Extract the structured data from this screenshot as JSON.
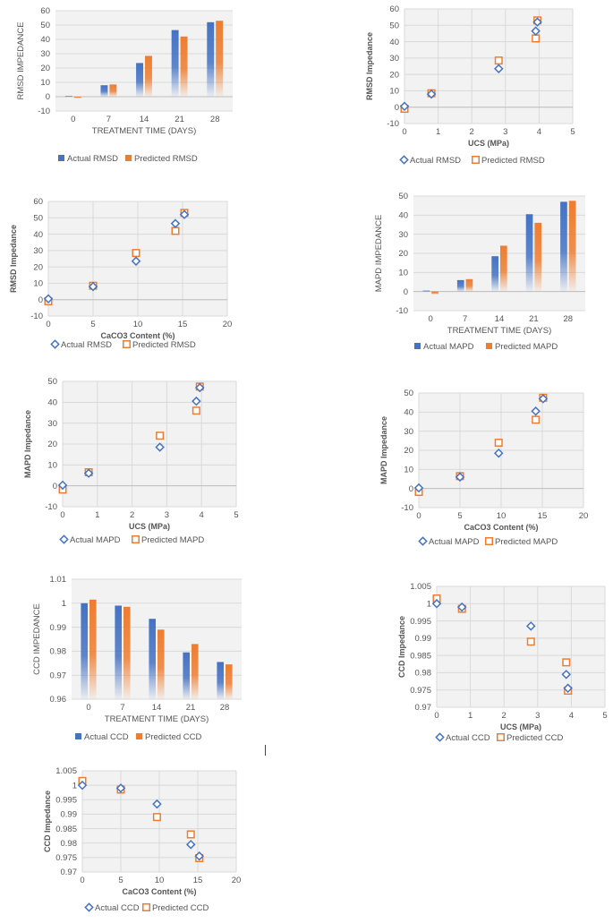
{
  "colors": {
    "actual": "#4472C4",
    "predicted": "#ED7D31",
    "plot_bg": "#F2F2F2",
    "grid": "#D9D9D9",
    "text": "#555555"
  },
  "chart_data": [
    {
      "id": "c1",
      "type": "bar",
      "title": "",
      "xlabel": "TREATMENT TIME (DAYS)",
      "ylabel": "RMSD IMPEDANCE",
      "categories": [
        "0",
        "7",
        "14",
        "21",
        "28"
      ],
      "ylim": [
        -10,
        60
      ],
      "yticks": [
        "60",
        "50",
        "40",
        "30",
        "20",
        "10",
        "0",
        "-10"
      ],
      "series": [
        {
          "name": "Actual RMSD",
          "values": [
            0.5,
            8,
            23.5,
            46.5,
            52
          ]
        },
        {
          "name": "Predicted RMSD",
          "values": [
            -1,
            8.5,
            28.5,
            42,
            53
          ]
        }
      ]
    },
    {
      "id": "c2",
      "type": "scatter",
      "title": "",
      "xlabel": "UCS (MPa)",
      "ylabel": "RMSD Impedance",
      "xlim": [
        0,
        5
      ],
      "ylim": [
        -10,
        60
      ],
      "xticks": [
        "0",
        "1",
        "2",
        "3",
        "4",
        "5"
      ],
      "yticks": [
        "60",
        "50",
        "40",
        "30",
        "20",
        "10",
        "0",
        "-10"
      ],
      "series": [
        {
          "name": "Actual RMSD",
          "marker": "diamond",
          "x": [
            0,
            0.8,
            2.8,
            3.9,
            3.95
          ],
          "y": [
            0.5,
            8,
            23.5,
            46.5,
            52
          ]
        },
        {
          "name": "Predicted RMSD",
          "marker": "square",
          "x": [
            0,
            0.8,
            2.8,
            3.9,
            3.95
          ],
          "y": [
            -1,
            8.5,
            28.5,
            42,
            53
          ]
        }
      ]
    },
    {
      "id": "c3",
      "type": "scatter",
      "title": "",
      "xlabel": "CaCO3 Content (%)",
      "ylabel": "RMSD Impedance",
      "xlim": [
        0,
        20
      ],
      "ylim": [
        -10,
        60
      ],
      "xticks": [
        "0",
        "5",
        "10",
        "15",
        "20"
      ],
      "yticks": [
        "60",
        "50",
        "40",
        "30",
        "20",
        "10",
        "0",
        "-10"
      ],
      "series": [
        {
          "name": "Actual RMSD",
          "marker": "diamond",
          "x": [
            0,
            5,
            9.8,
            14.2,
            15.2
          ],
          "y": [
            0.5,
            8,
            23.5,
            46.5,
            52
          ]
        },
        {
          "name": "Predicted RMSD",
          "marker": "square",
          "x": [
            0,
            5,
            9.8,
            14.2,
            15.2
          ],
          "y": [
            -1,
            8.5,
            28.5,
            42,
            53
          ]
        }
      ]
    },
    {
      "id": "c4",
      "type": "bar",
      "title": "",
      "xlabel": "TREATMENT TIME (DAYS)",
      "ylabel": "MAPD IMPEDANCE",
      "categories": [
        "0",
        "7",
        "14",
        "21",
        "28"
      ],
      "ylim": [
        -10,
        50
      ],
      "yticks": [
        "50",
        "40",
        "30",
        "20",
        "10",
        "0",
        "-10"
      ],
      "series": [
        {
          "name": "Actual MAPD",
          "values": [
            0.5,
            6,
            18.5,
            40.5,
            47
          ]
        },
        {
          "name": "Predicted MAPD",
          "values": [
            -1.5,
            6.5,
            24,
            36,
            47.5
          ]
        }
      ]
    },
    {
      "id": "c5",
      "type": "scatter",
      "title": "",
      "xlabel": "UCS (MPa)",
      "ylabel": "MAPD Impedance",
      "xlim": [
        0,
        5
      ],
      "ylim": [
        -10,
        50
      ],
      "xticks": [
        "0",
        "1",
        "2",
        "3",
        "4",
        "5"
      ],
      "yticks": [
        "50",
        "40",
        "30",
        "20",
        "10",
        "0",
        "-10"
      ],
      "series": [
        {
          "name": "Actual MAPD",
          "marker": "diamond",
          "x": [
            0,
            0.75,
            2.8,
            3.85,
            3.95
          ],
          "y": [
            0.3,
            6,
            18.5,
            40.5,
            47
          ]
        },
        {
          "name": "Predicted MAPD",
          "marker": "square",
          "x": [
            0,
            0.75,
            2.8,
            3.85,
            3.95
          ],
          "y": [
            -1.8,
            6.5,
            24,
            36,
            47.5
          ]
        }
      ]
    },
    {
      "id": "c6",
      "type": "scatter",
      "title": "",
      "xlabel": "CaCO3 Content (%)",
      "ylabel": "MAPD Impedance",
      "xlim": [
        0,
        20
      ],
      "ylim": [
        -10,
        50
      ],
      "xticks": [
        "0",
        "5",
        "10",
        "15",
        "20"
      ],
      "yticks": [
        "50",
        "40",
        "30",
        "20",
        "10",
        "0",
        "-10"
      ],
      "series": [
        {
          "name": "Actual MAPD",
          "marker": "diamond",
          "x": [
            0,
            5,
            9.7,
            14.2,
            15.1
          ],
          "y": [
            0.3,
            6,
            18.5,
            40.5,
            47
          ]
        },
        {
          "name": "Predicted MAPD",
          "marker": "square",
          "x": [
            0,
            5,
            9.7,
            14.2,
            15.1
          ],
          "y": [
            -1.8,
            6.5,
            24,
            36,
            47.5
          ]
        }
      ]
    },
    {
      "id": "c7",
      "type": "bar",
      "title": "",
      "xlabel": "TREATMENT TIME (DAYS)",
      "ylabel": "CCD IMPEDANCE",
      "categories": [
        "0",
        "7",
        "14",
        "21",
        "28"
      ],
      "ylim": [
        0.96,
        1.01
      ],
      "yticks": [
        "1.01",
        "1",
        "0.99",
        "0.98",
        "0.97",
        "0.96"
      ],
      "series": [
        {
          "name": "Actual CCD",
          "values": [
            1.0,
            0.999,
            0.9935,
            0.9795,
            0.9755
          ]
        },
        {
          "name": "Predicted CCD",
          "values": [
            1.0015,
            0.9985,
            0.989,
            0.983,
            0.9745
          ]
        }
      ]
    },
    {
      "id": "c8",
      "type": "scatter",
      "title": "",
      "xlabel": "UCS (MPa)",
      "ylabel": "CCD Impedance",
      "xlim": [
        0,
        5
      ],
      "ylim": [
        0.97,
        1.005
      ],
      "xticks": [
        "0",
        "1",
        "2",
        "3",
        "4",
        "5"
      ],
      "yticks": [
        "1.005",
        "1",
        "0.995",
        "0.99",
        "0.985",
        "0.98",
        "0.975",
        "0.97"
      ],
      "series": [
        {
          "name": "Actual CCD",
          "marker": "diamond",
          "x": [
            0,
            0.75,
            2.8,
            3.85,
            3.9
          ],
          "y": [
            1.0,
            0.999,
            0.9935,
            0.9795,
            0.9755
          ]
        },
        {
          "name": "Predicted CCD",
          "marker": "square",
          "x": [
            0,
            0.75,
            2.8,
            3.85,
            3.9
          ],
          "y": [
            1.0015,
            0.9985,
            0.989,
            0.983,
            0.9748
          ]
        }
      ]
    },
    {
      "id": "c9",
      "type": "scatter",
      "title": "",
      "xlabel": "CaCO3 Content (%)",
      "ylabel": "CCD Impedance",
      "xlim": [
        0,
        20
      ],
      "ylim": [
        0.97,
        1.005
      ],
      "xticks": [
        "0",
        "5",
        "10",
        "15",
        "20"
      ],
      "yticks": [
        "1.005",
        "1",
        "0.995",
        "0.99",
        "0.985",
        "0.98",
        "0.975",
        "0.97"
      ],
      "series": [
        {
          "name": "Actual CCD",
          "marker": "diamond",
          "x": [
            0,
            5,
            9.7,
            14.1,
            15.2
          ],
          "y": [
            1.0,
            0.999,
            0.9935,
            0.9795,
            0.9755
          ]
        },
        {
          "name": "Predicted CCD",
          "marker": "square",
          "x": [
            0,
            5,
            9.7,
            14.1,
            15.2
          ],
          "y": [
            1.0015,
            0.9985,
            0.989,
            0.983,
            0.9748
          ]
        }
      ]
    }
  ]
}
